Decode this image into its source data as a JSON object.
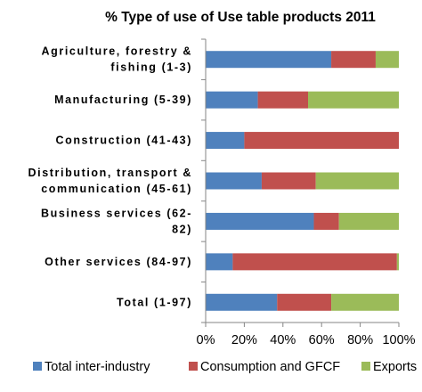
{
  "chart_data": {
    "type": "bar",
    "orientation": "horizontal",
    "stacked": true,
    "title": "% Type of use of Use table products 2011",
    "categories": [
      "Agriculture, forestry & fishing (1-3)",
      "Manufacturing (5-39)",
      "Construction (41-43)",
      "Distribution, transport & communication (45-61)",
      "Business services (62-82)",
      "Other services (84-97)",
      "Total (1-97)"
    ],
    "category_lines": [
      [
        "Agriculture, forestry &",
        "fishing (1-3)"
      ],
      [
        "Manufacturing (5-39)"
      ],
      [
        "Construction (41-43)"
      ],
      [
        "Distribution, transport &",
        "communication (45-61)"
      ],
      [
        "Business services (62-",
        "82)"
      ],
      [
        "Other services (84-97)"
      ],
      [
        "Total (1-97)"
      ]
    ],
    "series": [
      {
        "name": "Total inter-industry",
        "color": "#4F81BD",
        "values": [
          65,
          27,
          20,
          29,
          56,
          14,
          37
        ]
      },
      {
        "name": "Consumption and GFCF",
        "color": "#C0504D",
        "values": [
          23,
          26,
          80,
          28,
          13,
          85,
          28
        ]
      },
      {
        "name": "Exports",
        "color": "#9BBB59",
        "values": [
          12,
          47,
          0,
          43,
          31,
          1,
          35
        ]
      }
    ],
    "xlim": [
      0,
      100
    ],
    "xticks": [
      "0%",
      "20%",
      "40%",
      "60%",
      "80%",
      "100%"
    ],
    "legend_position": "bottom",
    "grid": false
  }
}
